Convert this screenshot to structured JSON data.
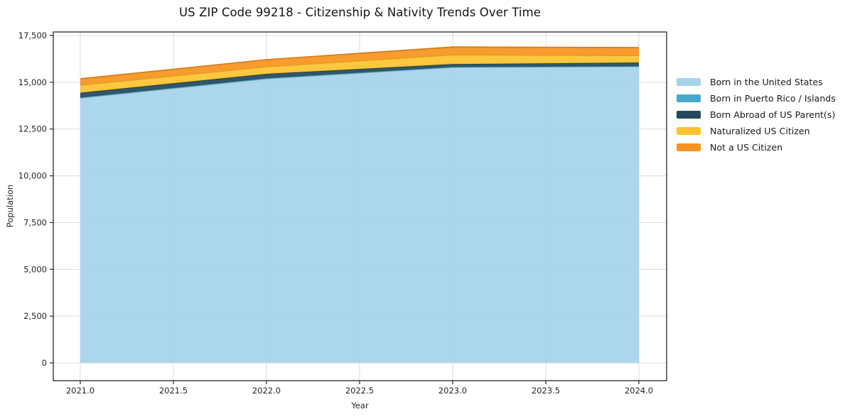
{
  "chart_data": {
    "type": "area",
    "stacked": true,
    "title": "US ZIP Code 99218 - Citizenship & Nativity Trends Over Time",
    "xlabel": "Year",
    "ylabel": "Population",
    "x": [
      2021,
      2022,
      2023,
      2024
    ],
    "series": [
      {
        "name": "Born in the United States",
        "color": "#a5d3ea",
        "values": [
          14160,
          15190,
          15800,
          15840
        ]
      },
      {
        "name": "Born in Puerto Rico / Islands",
        "color": "#45a9c9",
        "values": [
          30,
          30,
          25,
          25
        ]
      },
      {
        "name": "Born Abroad of US Parent(s)",
        "color": "#24495c",
        "values": [
          250,
          230,
          150,
          190
        ]
      },
      {
        "name": "Naturalized US Citizen",
        "color": "#fdc32f",
        "values": [
          405,
          380,
          490,
          380
        ]
      },
      {
        "name": "Not a US Citizen",
        "color": "#f7941f",
        "values": [
          340,
          380,
          420,
          415
        ]
      }
    ],
    "xticks": [
      2021.0,
      2021.5,
      2022.0,
      2022.5,
      2023.0,
      2023.5,
      2024.0
    ],
    "xtick_labels": [
      "2021.0",
      "2021.5",
      "2022.0",
      "2022.5",
      "2023.0",
      "2023.5",
      "2024.0"
    ],
    "yticks": [
      0,
      2500,
      5000,
      7500,
      10000,
      12500,
      15000,
      17500
    ],
    "ytick_labels": [
      "0",
      "2,500",
      "5,000",
      "7,500",
      "10,000",
      "12,500",
      "15,000",
      "17,500"
    ],
    "xlim": [
      2020.855,
      2024.149
    ],
    "ylim": [
      -949,
      17690
    ],
    "grid": true,
    "legend_position": "right",
    "colors": {
      "grid": "#dcdcdc",
      "spine": "#262626",
      "tick": "#262626",
      "tick_label": "#262626",
      "title": "#141414"
    }
  }
}
